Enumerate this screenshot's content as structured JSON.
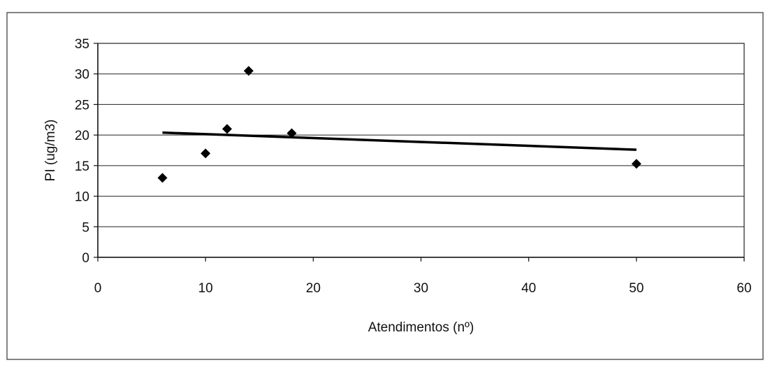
{
  "chart_data": {
    "type": "scatter",
    "title": "",
    "xlabel": "Atendimentos (nº)",
    "ylabel": "PI (ug/m3)",
    "xlim": [
      0,
      60
    ],
    "ylim": [
      0,
      35
    ],
    "x_ticks": [
      "0",
      "10",
      "20",
      "30",
      "40",
      "50",
      "60"
    ],
    "y_ticks": [
      "0",
      "5",
      "10",
      "15",
      "20",
      "25",
      "30",
      "35"
    ],
    "grid": "horizontal",
    "legend": "none",
    "series": [
      {
        "marker": "diamond",
        "color": "#000000",
        "points": [
          {
            "x": 6,
            "y": 13
          },
          {
            "x": 10,
            "y": 17
          },
          {
            "x": 12,
            "y": 21
          },
          {
            "x": 14,
            "y": 30.5
          },
          {
            "x": 18,
            "y": 20.3
          },
          {
            "x": 50,
            "y": 15.3
          }
        ]
      }
    ],
    "trendline": {
      "type": "linear",
      "color": "#000000",
      "from": {
        "x": 6,
        "y": 20.4
      },
      "to": {
        "x": 50,
        "y": 17.6
      }
    }
  }
}
